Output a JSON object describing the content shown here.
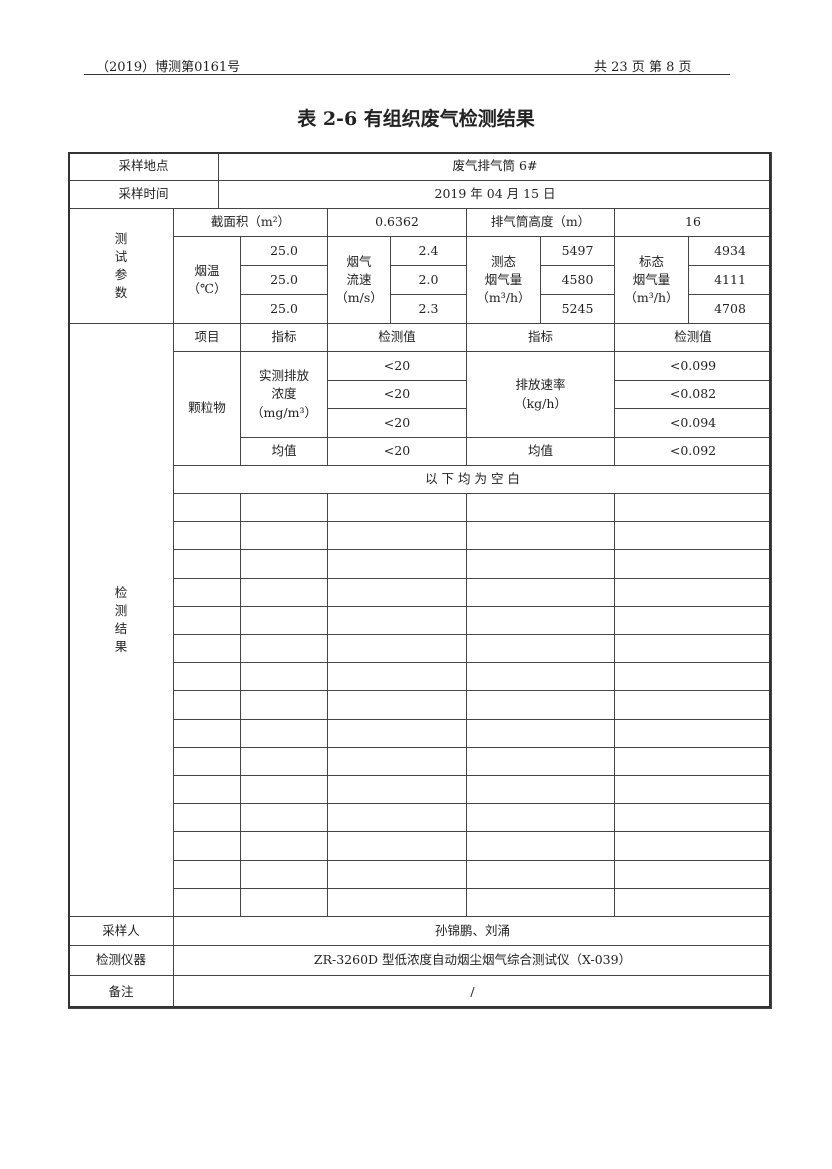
{
  "header": {
    "report_no": "（2019）博测第0161号",
    "page_info": "共 23 页   第 8 页"
  },
  "title": "表 2-6  有组织废气检测结果",
  "table": {
    "sampling_location_label": "采样地点",
    "sampling_location": "废气排气筒 6#",
    "sampling_time_label": "采样时间",
    "sampling_time": "2019 年 04 月 15 日",
    "test_params": {
      "label": "测\n试\n参\n数",
      "area_label": "截面积（m²）",
      "area": "0.6362",
      "stack_height_label": "排气筒高度（m）",
      "stack_height": "16",
      "flue_temp_label": "烟温\n（℃）",
      "flue_temp": [
        "25.0",
        "25.0",
        "25.0"
      ],
      "flow_speed_label": "烟气\n流速\n（m/s）",
      "flow_speed": [
        "2.4",
        "2.0",
        "2.3"
      ],
      "measured_flow_label": "测态\n烟气量\n（m³/h）",
      "measured_flow": [
        "5497",
        "4580",
        "5245"
      ],
      "standard_flow_label": "标态\n烟气量\n（m³/h）",
      "standard_flow": [
        "4934",
        "4111",
        "4708"
      ]
    },
    "results": {
      "label": "检\n测\n结\n果",
      "headers": [
        "项目",
        "指标",
        "检测值",
        "指标",
        "检测值"
      ],
      "item": "颗粒物",
      "concentration_label": "实测排放\n浓度\n（mg/m³）",
      "concentration": [
        "<20",
        "<20",
        "<20"
      ],
      "rate_label": "排放速率\n（kg/h）",
      "rate": [
        "<0.099",
        "<0.082",
        "<0.094"
      ],
      "avg_label": "均值",
      "avg_concentration": "<20",
      "avg_rate_label": "均值",
      "avg_rate": "<0.092",
      "blank_note": "以  下  均  为  空  白"
    },
    "sampler_label": "采样人",
    "sampler": "孙锦鹏、刘涌",
    "instrument_label": "检测仪器",
    "instrument": "ZR-3260D 型低浓度自动烟尘烟气综合测试仪（X-039）",
    "remark_label": "备注",
    "remark": "/"
  }
}
